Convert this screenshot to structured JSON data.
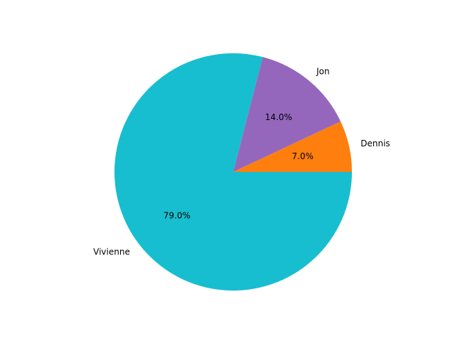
{
  "chart_data": {
    "type": "pie",
    "title": "",
    "slices": [
      {
        "label": "Dennis",
        "value": 7.0,
        "pct_label": "7.0%",
        "color": "#ff7f0e"
      },
      {
        "label": "Jon",
        "value": 14.0,
        "pct_label": "14.0%",
        "color": "#9467bd"
      },
      {
        "label": "Vivienne",
        "value": 79.0,
        "pct_label": "79.0%",
        "color": "#17becf"
      }
    ],
    "start_angle_deg": 0,
    "direction": "counterclockwise"
  }
}
